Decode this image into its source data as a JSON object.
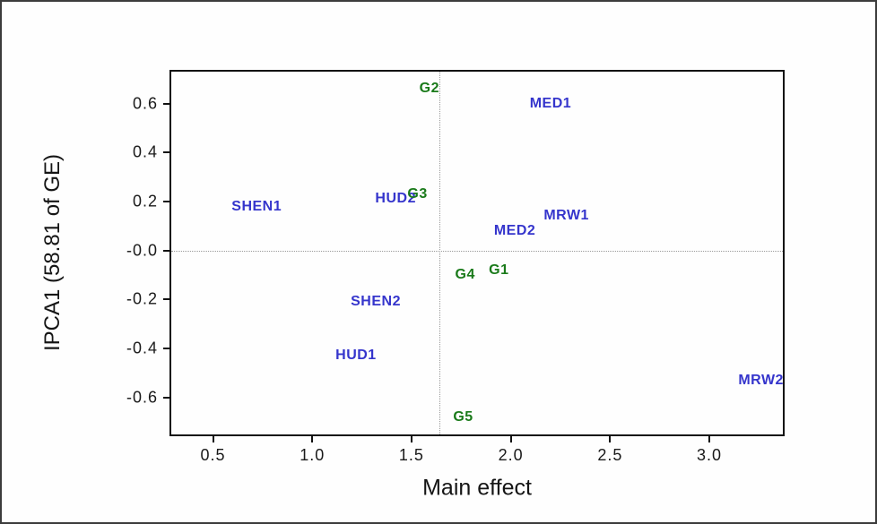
{
  "chart_data": {
    "type": "scatter",
    "title": "",
    "xlabel": "Main effect",
    "ylabel": "IPCA1 (58.81 of GE)",
    "xlim": [
      0.29,
      3.37
    ],
    "ylim": [
      -0.75,
      0.73
    ],
    "x_ticks": [
      {
        "value": 0.5,
        "label": "0.5"
      },
      {
        "value": 1.0,
        "label": "1.0"
      },
      {
        "value": 1.5,
        "label": "1.5"
      },
      {
        "value": 2.0,
        "label": "2.0"
      },
      {
        "value": 2.5,
        "label": "2.5"
      },
      {
        "value": 3.0,
        "label": "3.0"
      }
    ],
    "y_ticks": [
      {
        "value": 0.6,
        "label": "0.6"
      },
      {
        "value": 0.4,
        "label": "0.4"
      },
      {
        "value": 0.2,
        "label": "0.2"
      },
      {
        "value": 0.0,
        "label": "-0.0"
      },
      {
        "value": -0.2,
        "label": "-0.2"
      },
      {
        "value": -0.4,
        "label": "-0.4"
      },
      {
        "value": -0.6,
        "label": "-0.6"
      }
    ],
    "reference_lines": {
      "vertical_x": 1.64,
      "horizontal_y": 0.0
    },
    "grid": false,
    "legend_position": "none",
    "colors": {
      "genotype": "#1a7a1a",
      "environment": "#3535cc"
    },
    "series": [
      {
        "name": "genotypes",
        "type_key": "genotype",
        "points": [
          {
            "label": "G1",
            "x": 1.94,
            "y": -0.08
          },
          {
            "label": "G2",
            "x": 1.59,
            "y": 0.66
          },
          {
            "label": "G3",
            "x": 1.53,
            "y": 0.23
          },
          {
            "label": "G4",
            "x": 1.77,
            "y": -0.1
          },
          {
            "label": "G5",
            "x": 1.76,
            "y": -0.68
          }
        ]
      },
      {
        "name": "environments",
        "type_key": "environment",
        "points": [
          {
            "label": "SHEN1",
            "x": 0.72,
            "y": 0.18
          },
          {
            "label": "HUD2",
            "x": 1.42,
            "y": 0.21
          },
          {
            "label": "MED1",
            "x": 2.2,
            "y": 0.6
          },
          {
            "label": "MRW1",
            "x": 2.28,
            "y": 0.14
          },
          {
            "label": "MED2",
            "x": 2.02,
            "y": 0.08
          },
          {
            "label": "SHEN2",
            "x": 1.32,
            "y": -0.21
          },
          {
            "label": "HUD1",
            "x": 1.22,
            "y": -0.43
          },
          {
            "label": "MRW2",
            "x": 3.26,
            "y": -0.53
          }
        ]
      }
    ]
  }
}
